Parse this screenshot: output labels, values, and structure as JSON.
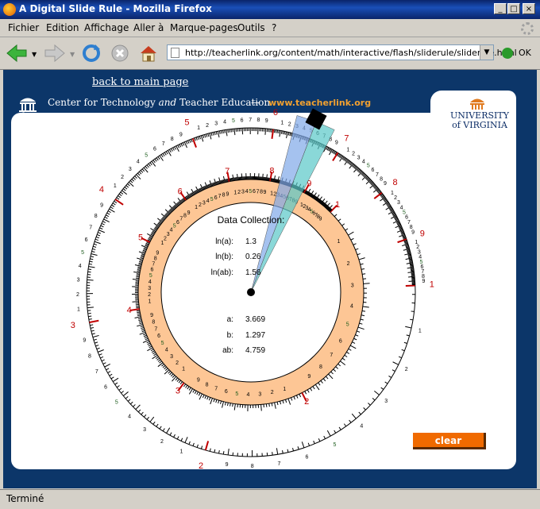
{
  "window": {
    "title": "A Digital Slide Rule - Mozilla Firefox",
    "controls": [
      "_",
      "□",
      "×"
    ]
  },
  "menu": [
    "Fichier",
    "Edition",
    "Affichage",
    "Aller à",
    "Marque-pages",
    "Outils",
    "?"
  ],
  "navigation": {
    "url": "http://teacherlink.org/content/math/interactive/flash/sliderule/sliderule.html",
    "go_label": "OK"
  },
  "page": {
    "back_link": "back to main page",
    "header_prefix": "Center for Technology ",
    "header_and": "and",
    "header_suffix": " Teacher Education",
    "separator": "—",
    "site": "www.teacherlink.org",
    "university_line1": "UNIVERSITY",
    "university_line2": "of VIRGINIA"
  },
  "data_collection": {
    "title": "Data Collection:",
    "ln_a_label": "ln(a):",
    "ln_a": "1.3",
    "ln_b_label": "ln(b):",
    "ln_b": "0.26",
    "ln_ab_label": "ln(ab):",
    "ln_ab": "1.56",
    "a_label": "a:",
    "a": "3.669",
    "b_label": "b:",
    "b": "1.297",
    "ab_label": "ab:",
    "ab": "4.759"
  },
  "clear_label": "clear",
  "status": "Terminé",
  "colors": {
    "background": "#0c3669",
    "ring": "#fdc695",
    "accent": "#f06a00",
    "cursor_blue": "#7fa8e8",
    "cursor_teal": "#58c8c8",
    "major_tick": "#c00000"
  }
}
